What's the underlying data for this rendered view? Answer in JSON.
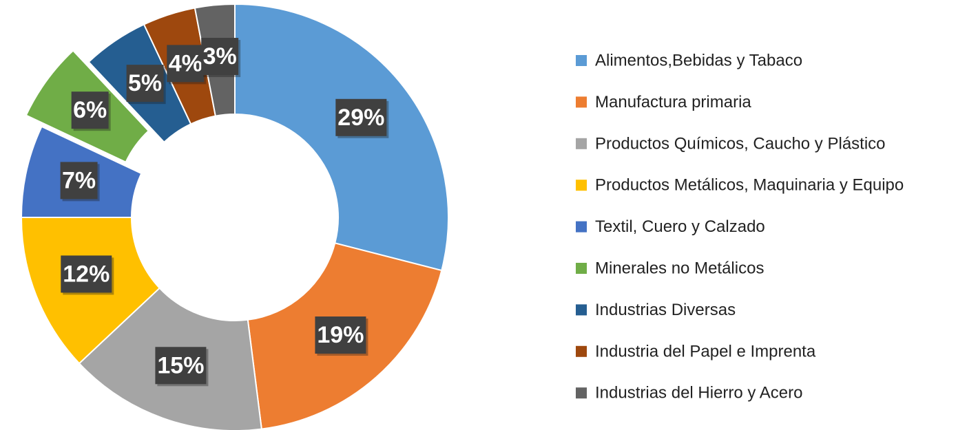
{
  "chart_data": {
    "type": "donut",
    "categories": [
      "Alimentos,Bebidas y Tabaco",
      "Manufactura primaria",
      "Productos Químicos, Caucho y Plástico",
      "Productos Metálicos, Maquinaria y Equipo",
      "Textil, Cuero y Calzado",
      "Minerales no Metálicos",
      "Industrias Diversas",
      "Industria del Papel e Imprenta",
      "Industrias del Hierro y Acero"
    ],
    "values": [
      29,
      19,
      15,
      12,
      7,
      6,
      5,
      4,
      3
    ],
    "value_labels": [
      "29%",
      "19%",
      "15%",
      "12%",
      "7%",
      "6%",
      "5%",
      "4%",
      "3%"
    ],
    "colors": [
      "#5b9bd5",
      "#ed7d31",
      "#a5a5a5",
      "#ffc000",
      "#4472c4",
      "#70ad47",
      "#255e91",
      "#9e480e",
      "#636363"
    ],
    "exploded": [
      5
    ],
    "legend": "right"
  }
}
